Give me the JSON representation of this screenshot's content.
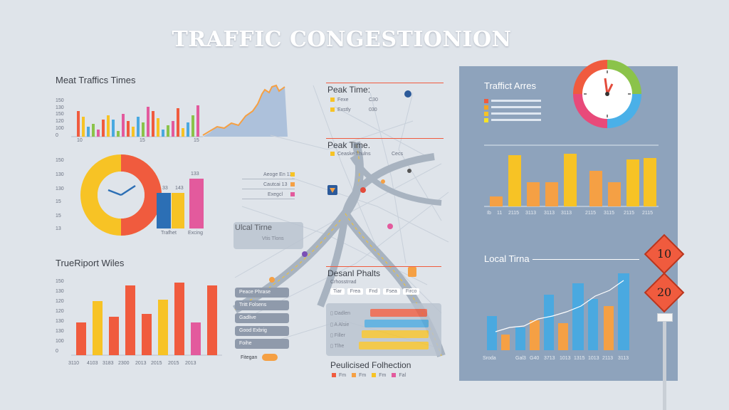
{
  "header": {
    "title": "TRAFFIC CONGESTIONION"
  },
  "panel_top_left": {
    "title": "Meat Traffics Times",
    "y_labels": [
      "150",
      "130",
      "150",
      "120",
      "100",
      "0"
    ],
    "x_labels": [
      "10",
      "15",
      "15"
    ],
    "colors": [
      "#f05b3e",
      "#f7c325",
      "#4aa9e0",
      "#8bc34a",
      "#e35a9d"
    ]
  },
  "panel_donut": {
    "y_labels": [
      "150",
      "130",
      "130",
      "15",
      "15",
      "13"
    ],
    "bar_labels": [
      "Trafhet",
      "Excing"
    ],
    "bar_values": [
      "33",
      "143",
      "133"
    ]
  },
  "panel_transport": {
    "title": "TrueRiport Wiles",
    "y_labels": [
      "150",
      "130",
      "120",
      "120",
      "130",
      "130",
      "100",
      "0"
    ],
    "x_labels": [
      "3110",
      "4103",
      "3183",
      "2300",
      "2013",
      "2015",
      "2015",
      "2013"
    ]
  },
  "map": {
    "peak1": {
      "title": "Peak Time:",
      "items": [
        "Fexe",
        "Exstly",
        "C30",
        "030"
      ]
    },
    "peak2": {
      "title": "Peak Time.",
      "items": [
        "Ceaske Thulns",
        "Cecs"
      ]
    },
    "legend_box": {
      "items": [
        "Aeoge En 13",
        "Cautcai 13",
        "Exegcl"
      ]
    },
    "local1": {
      "title": "Ulcal Tirne",
      "sub": "Vtis Tlons"
    },
    "destn": {
      "title": "Desanl Phalts",
      "sub": "Crhosstrrad",
      "chips": [
        "Tiar",
        "Frea",
        "Fnd",
        "Fsea",
        "Firco"
      ]
    },
    "pill_list": [
      "Peace Phrase",
      "Tritt Folsens",
      "Gadlive",
      "Good Exbrig",
      "Foihe",
      "Fitegan"
    ],
    "h_bars": [
      {
        "label": "Dadlen",
        "color": "#f05b3e"
      },
      {
        "label": "A Alsie",
        "color": "#4aa9e0"
      },
      {
        "label": "Filler",
        "color": "#f7c325"
      },
      {
        "label": "Tlhe",
        "color": "#f7c325"
      }
    ],
    "publicised": {
      "title": "Peulicised Folhection",
      "items": [
        "Fm",
        "Fm",
        "Fm",
        "Fal"
      ]
    }
  },
  "right_panel": {
    "title": "Traffict Arres",
    "legend_colors": [
      "#f05b3e",
      "#f5a623",
      "#f7c325",
      "#f7e325"
    ],
    "top_bars_x": [
      "Ib",
      "11",
      "2115",
      "3113",
      "3113",
      "3113",
      "2115",
      "3115",
      "2115",
      "2115"
    ],
    "local_title": "Local Tirna",
    "bottom_x": [
      "Sroda",
      "Gal3",
      "G40",
      "3713",
      "1013",
      "1315",
      "1013",
      "2113",
      "3113"
    ]
  },
  "signs": {
    "top": "10",
    "bottom": "20"
  },
  "palette": {
    "red": "#f05b3e",
    "orange": "#f5a044",
    "yellow": "#f7c325",
    "blue": "#4aa9e0",
    "green": "#8bc34a",
    "pink": "#e35a9d",
    "road": "#a8b3c0"
  }
}
